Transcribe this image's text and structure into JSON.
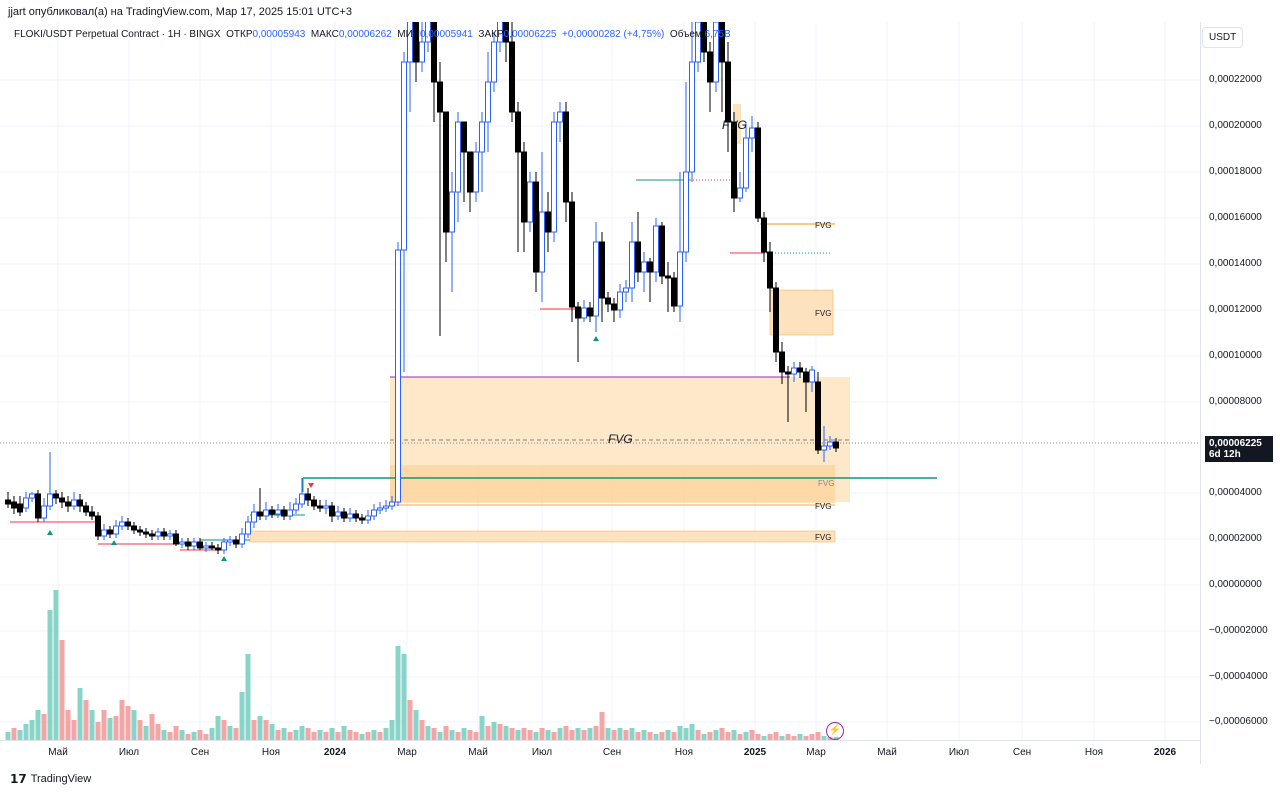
{
  "header": {
    "publisher_line": "jjart опубликовал(а) на TradingView.com, Мар 17, 2025 15:01 UTC+3"
  },
  "legend": {
    "symbol": "FLOKI/USDT Perpetual Contract · 1H · BINGX",
    "open_label": "ОТКР",
    "open": "0,00005943",
    "high_label": "МАКС",
    "high": "0,00006262",
    "low_label": "МИН",
    "low": "0,00005941",
    "close_label": "ЗАКР",
    "close": "0,00006225",
    "change": "+0,00000282 (+4,75%)",
    "volume_label": "Объем",
    "volume": "6,75B"
  },
  "currency_button": "USDT",
  "y_axis": [
    "0,00022000",
    "0,00020000",
    "0,00018000",
    "0,00016000",
    "0,00014000",
    "0,00012000",
    "0,00010000",
    "0,00008000",
    "0,00004000",
    "0,00002000",
    "0,00000000",
    "−0,00002000",
    "−0,00004000",
    "−0,00006000"
  ],
  "current_price": {
    "value": "0,00006225",
    "countdown": "6d 12h"
  },
  "x_axis": [
    {
      "t": "Май",
      "b": false
    },
    {
      "t": "Июл",
      "b": false
    },
    {
      "t": "Сен",
      "b": false
    },
    {
      "t": "Ноя",
      "b": false
    },
    {
      "t": "2024",
      "b": true
    },
    {
      "t": "Мар",
      "b": false
    },
    {
      "t": "Май",
      "b": false
    },
    {
      "t": "Июл",
      "b": false
    },
    {
      "t": "Сен",
      "b": false
    },
    {
      "t": "Ноя",
      "b": false
    },
    {
      "t": "2025",
      "b": true
    },
    {
      "t": "Мар",
      "b": false
    },
    {
      "t": "Май",
      "b": false
    },
    {
      "t": "Июл",
      "b": false
    },
    {
      "t": "Сен",
      "b": false
    },
    {
      "t": "Ноя",
      "b": false
    },
    {
      "t": "2026",
      "b": true
    }
  ],
  "fvg_labels": {
    "big": "FVG",
    "small": "FVG"
  },
  "footer": {
    "logo": "TradingView"
  },
  "colors": {
    "up": "#2962ff",
    "down": "#000000",
    "vol_up": "#89d4c8",
    "vol_down": "#f4a6a6",
    "fvg_fill": "#fde3bd",
    "fvg_border": "#f7a94b"
  }
}
